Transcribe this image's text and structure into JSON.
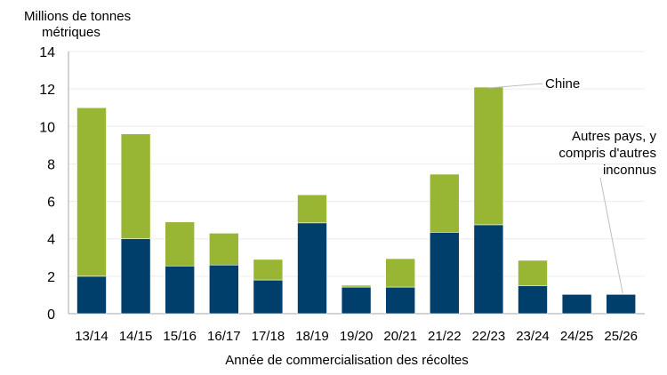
{
  "chart_data": {
    "type": "bar",
    "stacked": true,
    "ylabel": "Millions de tonnes métriques",
    "xlabel": "Année de commercialisation des récoltes",
    "ylim": [
      0,
      14
    ],
    "yticks": [
      0,
      2,
      4,
      6,
      8,
      10,
      12,
      14
    ],
    "grid": true,
    "categories": [
      "13/14",
      "14/15",
      "15/16",
      "16/17",
      "17/18",
      "18/19",
      "19/20",
      "20/21",
      "21/22",
      "22/23",
      "23/24",
      "24/25",
      "25/26"
    ],
    "series": [
      {
        "name": "Autres pays, y compris d'autres inconnus",
        "color": "#003f6b",
        "values": [
          2.0,
          4.0,
          2.55,
          2.6,
          1.8,
          4.85,
          1.42,
          1.42,
          4.35,
          4.75,
          1.5,
          1.03,
          1.03
        ]
      },
      {
        "name": "Chine",
        "color": "#99b534",
        "values": [
          9.0,
          5.6,
          2.35,
          1.7,
          1.1,
          1.5,
          0.1,
          1.52,
          3.1,
          7.35,
          1.35,
          0,
          0
        ]
      }
    ],
    "annotations": [
      "Chine",
      "Autres pays, y compris d'autres inconnus"
    ]
  }
}
